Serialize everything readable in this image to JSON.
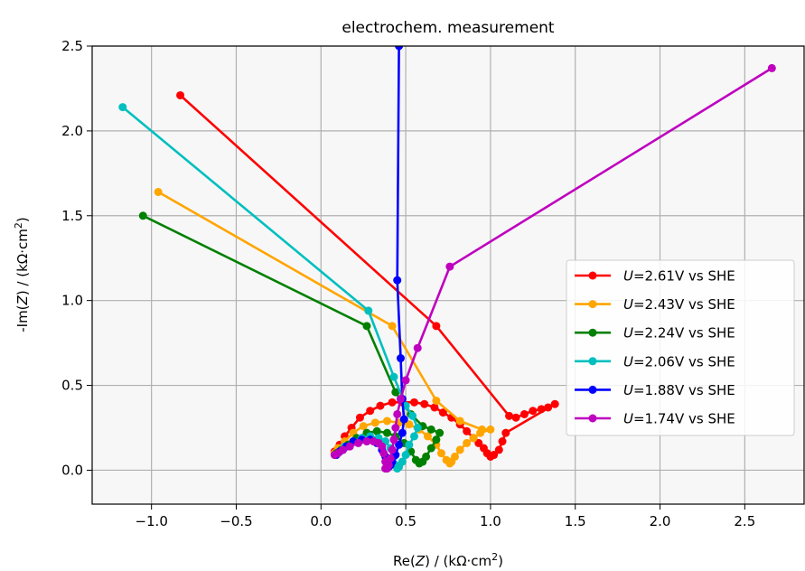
{
  "chart_data": {
    "type": "line",
    "title": "electrochem. measurement",
    "xlabel": {
      "pre": "Re(",
      "var": "Z",
      "post": ") / (kΩ·cm",
      "sup": "2",
      "end": ")"
    },
    "ylabel": {
      "pre": "-Im(",
      "var": "Z",
      "post": ") / (kΩ·cm",
      "sup": "2",
      "end": ")"
    },
    "xlim": [
      -1.35,
      2.85
    ],
    "ylim": [
      -0.2,
      2.5
    ],
    "xticks": [
      -1.0,
      -0.5,
      0.0,
      0.5,
      1.0,
      1.5,
      2.0,
      2.5
    ],
    "xtick_labels": [
      "−1.0",
      "−0.5",
      "0.0",
      "0.5",
      "1.0",
      "1.5",
      "2.0",
      "2.5"
    ],
    "yticks": [
      0.0,
      0.5,
      1.0,
      1.5,
      2.0,
      2.5
    ],
    "ytick_labels": [
      "0.0",
      "0.5",
      "1.0",
      "1.5",
      "2.0",
      "2.5"
    ],
    "grid": true,
    "legend_position": "center-right",
    "plot_background": "#f7f7f7",
    "series": [
      {
        "name": "U=2.61V vs SHE",
        "label_var": "U",
        "label_rest": "=2.61V vs SHE",
        "color": "#ff0000",
        "x": [
          -0.83,
          0.68,
          1.11,
          1.15,
          1.2,
          1.25,
          1.3,
          1.34,
          1.38,
          1.09,
          1.07,
          1.05,
          1.02,
          1.0,
          0.98,
          0.96,
          0.93,
          0.9,
          0.86,
          0.82,
          0.77,
          0.72,
          0.67,
          0.61,
          0.55,
          0.48,
          0.42,
          0.35,
          0.29,
          0.23,
          0.18,
          0.14,
          0.11,
          0.08
        ],
        "y": [
          2.21,
          0.85,
          0.32,
          0.31,
          0.33,
          0.35,
          0.36,
          0.37,
          0.39,
          0.22,
          0.17,
          0.12,
          0.09,
          0.08,
          0.1,
          0.13,
          0.16,
          0.19,
          0.23,
          0.27,
          0.31,
          0.34,
          0.37,
          0.39,
          0.4,
          0.4,
          0.4,
          0.38,
          0.35,
          0.31,
          0.25,
          0.2,
          0.15,
          0.11
        ]
      },
      {
        "name": "U=2.43V vs SHE",
        "label_var": "U",
        "label_rest": "=2.43V vs SHE",
        "color": "#ffa500",
        "x": [
          -0.96,
          0.42,
          0.68,
          0.82,
          0.95,
          1.0,
          0.94,
          0.9,
          0.86,
          0.82,
          0.79,
          0.77,
          0.76,
          0.74,
          0.71,
          0.68,
          0.63,
          0.58,
          0.52,
          0.46,
          0.39,
          0.32,
          0.25,
          0.19,
          0.14,
          0.1,
          0.08
        ],
        "y": [
          1.64,
          0.85,
          0.41,
          0.29,
          0.24,
          0.24,
          0.22,
          0.19,
          0.16,
          0.12,
          0.08,
          0.05,
          0.04,
          0.06,
          0.1,
          0.15,
          0.2,
          0.24,
          0.27,
          0.28,
          0.29,
          0.28,
          0.26,
          0.22,
          0.17,
          0.13,
          0.1
        ]
      },
      {
        "name": "U=2.24V vs SHE",
        "label_var": "U",
        "label_rest": "=2.24V vs SHE",
        "color": "#008000",
        "x": [
          -1.05,
          0.27,
          0.44,
          0.53,
          0.6,
          0.65,
          0.7,
          0.68,
          0.65,
          0.62,
          0.6,
          0.58,
          0.56,
          0.53,
          0.49,
          0.44,
          0.39,
          0.33,
          0.27,
          0.21,
          0.16,
          0.12,
          0.09
        ],
        "y": [
          1.5,
          0.85,
          0.46,
          0.33,
          0.26,
          0.24,
          0.22,
          0.18,
          0.13,
          0.08,
          0.05,
          0.04,
          0.06,
          0.11,
          0.16,
          0.2,
          0.22,
          0.23,
          0.22,
          0.19,
          0.15,
          0.12,
          0.1
        ]
      },
      {
        "name": "U=2.06V vs SHE",
        "label_var": "U",
        "label_rest": "=2.06V vs SHE",
        "color": "#00bfbf",
        "x": [
          -1.17,
          0.28,
          0.43,
          0.5,
          0.54,
          0.57,
          0.55,
          0.52,
          0.5,
          0.48,
          0.46,
          0.45,
          0.44,
          0.43,
          0.41,
          0.38,
          0.34,
          0.29,
          0.24,
          0.19,
          0.14,
          0.11,
          0.09
        ],
        "y": [
          2.14,
          0.94,
          0.55,
          0.38,
          0.32,
          0.25,
          0.2,
          0.15,
          0.09,
          0.05,
          0.02,
          0.01,
          0.03,
          0.08,
          0.13,
          0.17,
          0.19,
          0.2,
          0.19,
          0.17,
          0.14,
          0.11,
          0.09
        ]
      },
      {
        "name": "U=1.88V vs SHE",
        "label_var": "U",
        "label_rest": "=1.88V vs SHE",
        "color": "#0000ff",
        "x": [
          0.46,
          0.45,
          0.47,
          0.48,
          0.49,
          0.48,
          0.46,
          0.44,
          0.42,
          0.41,
          0.4,
          0.39,
          0.38,
          0.36,
          0.33,
          0.29,
          0.24,
          0.19,
          0.15,
          0.11,
          0.09
        ],
        "y": [
          2.5,
          1.12,
          0.66,
          0.42,
          0.3,
          0.22,
          0.15,
          0.09,
          0.05,
          0.03,
          0.02,
          0.04,
          0.08,
          0.12,
          0.16,
          0.18,
          0.18,
          0.17,
          0.14,
          0.11,
          0.09
        ]
      },
      {
        "name": "U=1.74V vs SHE",
        "label_var": "U",
        "label_rest": "=1.74V vs SHE",
        "color": "#bf00bf",
        "x": [
          2.66,
          0.76,
          0.57,
          0.5,
          0.47,
          0.45,
          0.44,
          0.43,
          0.42,
          0.41,
          0.4,
          0.39,
          0.38,
          0.38,
          0.37,
          0.36,
          0.34,
          0.31,
          0.27,
          0.22,
          0.17,
          0.13,
          0.1,
          0.08
        ],
        "y": [
          2.37,
          1.2,
          0.72,
          0.53,
          0.42,
          0.33,
          0.25,
          0.18,
          0.12,
          0.07,
          0.03,
          0.01,
          0.01,
          0.05,
          0.1,
          0.14,
          0.16,
          0.17,
          0.17,
          0.16,
          0.14,
          0.12,
          0.1,
          0.09
        ]
      }
    ]
  }
}
